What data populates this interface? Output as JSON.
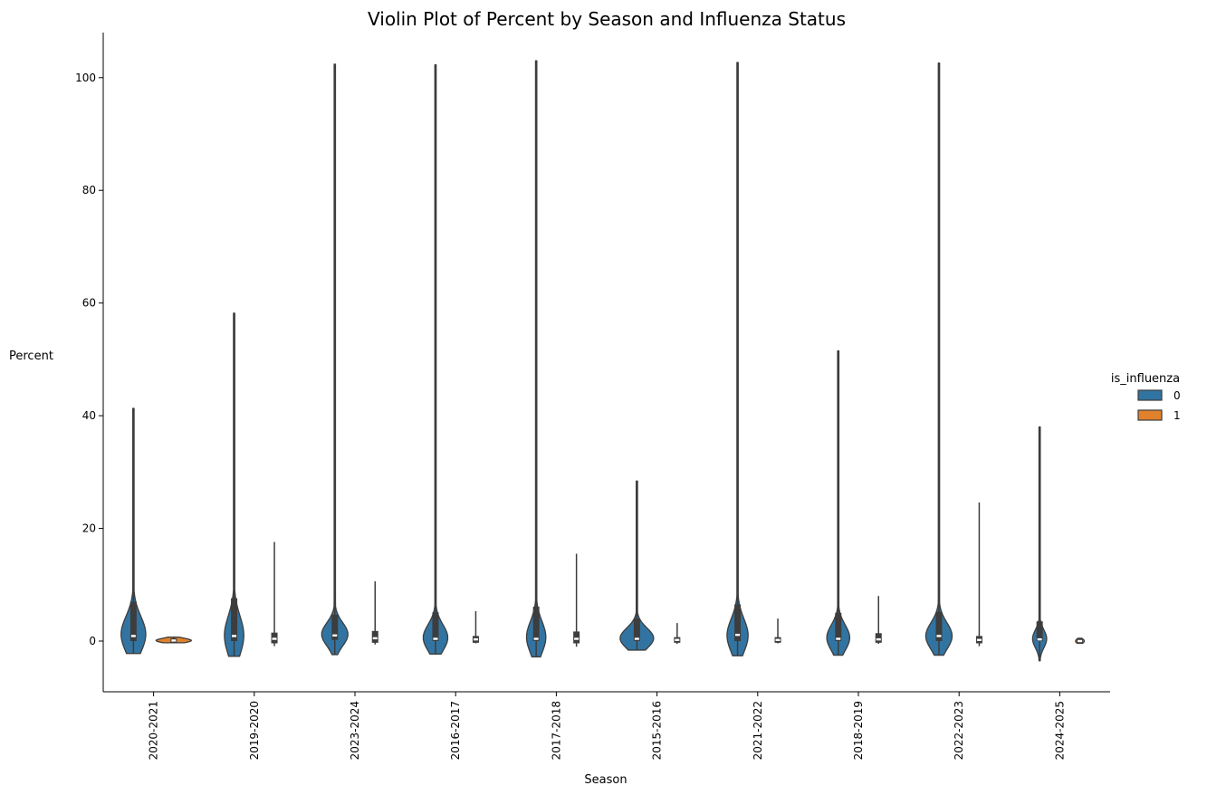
{
  "chart_data": {
    "type": "violin",
    "title": "Violin Plot of Percent by Season and Influenza Status",
    "xlabel": "Season",
    "ylabel": "Percent",
    "ylim": [
      -9,
      108
    ],
    "yticks": [
      0,
      20,
      40,
      60,
      80,
      100
    ],
    "grid": false,
    "legend": {
      "title": "is_influenza",
      "placement": "center-right",
      "entries": [
        {
          "label": "0",
          "color": "#3274a1"
        },
        {
          "label": "1",
          "color": "#e1812c"
        }
      ]
    },
    "categories": [
      "2020-2021",
      "2019-2020",
      "2023-2024",
      "2016-2017",
      "2017-2018",
      "2015-2016",
      "2021-2022",
      "2018-2019",
      "2022-2023",
      "2024-2025"
    ],
    "series": [
      {
        "name": "0",
        "color": "#3274a1",
        "violins": [
          {
            "min": -2.2,
            "max": 41.3,
            "q1": 0.0,
            "median": 0.9,
            "q3": 7.0,
            "w": 0.7,
            "peak": 1.2
          },
          {
            "min": -2.7,
            "max": 58.2,
            "q1": 0.0,
            "median": 0.9,
            "q3": 7.6,
            "w": 0.55,
            "peak": 1.0
          },
          {
            "min": -2.4,
            "max": 102.4,
            "q1": 0.2,
            "median": 1.0,
            "q3": 4.7,
            "w": 0.75,
            "peak": 1.2
          },
          {
            "min": -2.3,
            "max": 102.3,
            "q1": 0.0,
            "median": 0.4,
            "q3": 5.1,
            "w": 0.7,
            "peak": 0.6
          },
          {
            "min": -2.8,
            "max": 103.0,
            "q1": 0.0,
            "median": 0.4,
            "q3": 6.1,
            "w": 0.55,
            "peak": 0.7
          },
          {
            "min": -1.6,
            "max": 28.4,
            "q1": 0.0,
            "median": 0.4,
            "q3": 4.0,
            "w": 0.95,
            "peak": 0.5
          },
          {
            "min": -2.6,
            "max": 102.7,
            "q1": 0.0,
            "median": 1.1,
            "q3": 6.5,
            "w": 0.6,
            "peak": 1.0
          },
          {
            "min": -2.5,
            "max": 51.5,
            "q1": 0.0,
            "median": 0.4,
            "q3": 5.0,
            "w": 0.65,
            "peak": 0.6
          },
          {
            "min": -2.5,
            "max": 102.6,
            "q1": 0.0,
            "median": 0.9,
            "q3": 5.2,
            "w": 0.75,
            "peak": 0.9
          },
          {
            "min": -3.5,
            "max": 38.0,
            "q1": 0.0,
            "median": 0.3,
            "q3": 3.5,
            "w": 0.4,
            "peak": 0.4
          }
        ]
      },
      {
        "name": "1",
        "color": "#e1812c",
        "violins": [
          {
            "min": -0.3,
            "max": 0.7,
            "q1": -0.3,
            "median": 0.1,
            "q3": 0.5,
            "w": 1.0,
            "peak": 0.1
          },
          {
            "min": -0.9,
            "max": 17.6,
            "q1": -0.4,
            "median": 0.4,
            "q3": 1.5,
            "w": 0.0,
            "peak": 0.4
          },
          {
            "min": -0.6,
            "max": 10.6,
            "q1": -0.3,
            "median": 0.5,
            "q3": 1.8,
            "w": 0.0,
            "peak": 0.5
          },
          {
            "min": -0.4,
            "max": 5.3,
            "q1": -0.3,
            "median": 0.3,
            "q3": 0.9,
            "w": 0.0,
            "peak": 0.3
          },
          {
            "min": -1.0,
            "max": 15.5,
            "q1": -0.4,
            "median": 0.4,
            "q3": 1.7,
            "w": 0.0,
            "peak": 0.4
          },
          {
            "min": -0.5,
            "max": 3.2,
            "q1": -0.3,
            "median": 0.2,
            "q3": 0.7,
            "w": 0.0,
            "peak": 0.2
          },
          {
            "min": -0.4,
            "max": 4.0,
            "q1": -0.3,
            "median": 0.2,
            "q3": 0.7,
            "w": 0.0,
            "peak": 0.2
          },
          {
            "min": -0.5,
            "max": 8.0,
            "q1": -0.3,
            "median": 0.3,
            "q3": 1.4,
            "w": 0.0,
            "peak": 0.3
          },
          {
            "min": -0.9,
            "max": 24.6,
            "q1": -0.4,
            "median": 0.2,
            "q3": 0.9,
            "w": 0.0,
            "peak": 0.2
          },
          {
            "min": -0.4,
            "max": 0.5,
            "q1": -0.4,
            "median": 0.0,
            "q3": 0.4,
            "w": 0.25,
            "peak": 0.0
          }
        ]
      }
    ]
  }
}
